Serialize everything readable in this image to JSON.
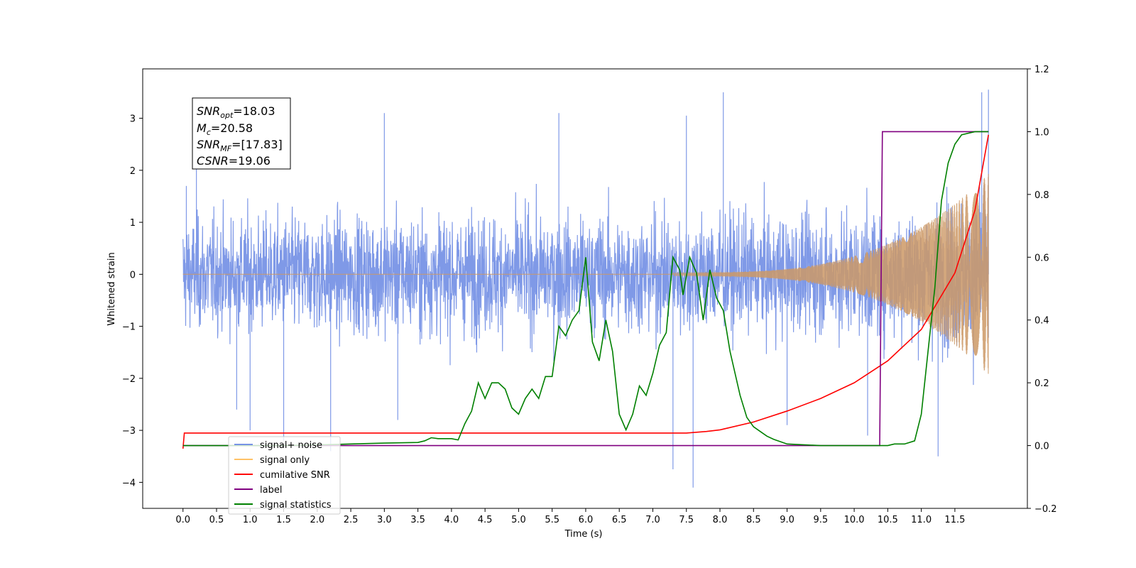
{
  "chart_data": {
    "type": "line",
    "xlabel": "Time (s)",
    "ylabel": "Whitened strain",
    "xlim": [
      -0.6,
      12.58
    ],
    "ylim": [
      -4.5,
      3.95
    ],
    "y2lim": [
      -0.2,
      1.2
    ],
    "x_ticks": [
      "0.0",
      "0.5",
      "1.0",
      "1.5",
      "2.0",
      "2.5",
      "3.0",
      "3.5",
      "4.0",
      "4.5",
      "5.0",
      "5.5",
      "6.0",
      "6.5",
      "7.0",
      "7.5",
      "8.0",
      "8.5",
      "9.0",
      "9.5",
      "10.0",
      "10.5",
      "11.0",
      "11.5"
    ],
    "x_tick_values": [
      0,
      0.5,
      1,
      1.5,
      2,
      2.5,
      3,
      3.5,
      4,
      4.5,
      5,
      5.5,
      6,
      6.5,
      7,
      7.5,
      8,
      8.5,
      9,
      9.5,
      10,
      10.5,
      11,
      11.5
    ],
    "y_ticks": [
      "3",
      "2",
      "1",
      "0",
      "−1",
      "−2",
      "−3",
      "−4"
    ],
    "y_tick_values": [
      3,
      2,
      1,
      0,
      -1,
      -2,
      -3,
      -4
    ],
    "y2_ticks": [
      "1.2",
      "1.0",
      "0.8",
      "0.6",
      "0.4",
      "0.2",
      "0.0",
      "−0.2"
    ],
    "y2_tick_values": [
      1.2,
      1.0,
      0.8,
      0.6,
      0.4,
      0.2,
      0.0,
      -0.2
    ],
    "annotation": {
      "lines": [
        {
          "main": "SNR",
          "sub": "opt",
          "value": "=18.03"
        },
        {
          "main": "M",
          "sub": "c",
          "value": "=20.58"
        },
        {
          "main": "SNR",
          "sub": "MF",
          "value": "=[17.83]"
        },
        {
          "main": "CSNR",
          "sub": "",
          "value": "=19.06"
        }
      ]
    },
    "legend": {
      "placement": "lower-left",
      "entries": [
        {
          "label": "signal+ noise",
          "color": "#7893e6"
        },
        {
          "label": "signal only",
          "color": "#ffc266"
        },
        {
          "label": "cumilative SNR",
          "color": "#ff0000"
        },
        {
          "label": "label",
          "color": "#800080"
        },
        {
          "label": "signal statistics",
          "color": "#008000"
        }
      ]
    },
    "series": [
      {
        "name": "signal+ noise",
        "color": "#7893e6",
        "axis": "left",
        "t_range": [
          0,
          12.0
        ],
        "envelope_upper": [
          [
            0,
            1.2
          ],
          [
            1,
            1.25
          ],
          [
            3,
            1.3
          ],
          [
            6,
            1.3
          ],
          [
            9,
            1.3
          ],
          [
            10.5,
            1.4
          ],
          [
            11.0,
            1.5
          ],
          [
            11.5,
            1.6
          ],
          [
            12.0,
            1.9
          ]
        ],
        "envelope_lower": [
          [
            0,
            -1.2
          ],
          [
            1,
            -1.25
          ],
          [
            3,
            -1.3
          ],
          [
            6,
            -1.3
          ],
          [
            9,
            -1.3
          ],
          [
            10.5,
            -1.4
          ],
          [
            11.0,
            -1.5
          ],
          [
            11.5,
            -1.6
          ],
          [
            12.0,
            -1.9
          ]
        ],
        "extremes": [
          [
            0.05,
            1.7
          ],
          [
            0.2,
            2.4
          ],
          [
            0.8,
            -2.6
          ],
          [
            1.0,
            -3.0
          ],
          [
            1.5,
            -3.2
          ],
          [
            2.2,
            -3.4
          ],
          [
            3.0,
            3.1
          ],
          [
            3.2,
            -2.8
          ],
          [
            5.6,
            3.1
          ],
          [
            7.3,
            -3.75
          ],
          [
            7.5,
            3.05
          ],
          [
            7.6,
            -4.1
          ],
          [
            8.05,
            3.5
          ],
          [
            9.0,
            -2.9
          ],
          [
            10.2,
            -3.1
          ],
          [
            11.25,
            -3.5
          ],
          [
            11.9,
            3.5
          ],
          [
            12.0,
            3.55
          ]
        ]
      },
      {
        "name": "signal only",
        "color": "#cc9966",
        "axis": "left",
        "chirp_start": 7.3,
        "t_end": 12.0,
        "amplitude_end": 1.9
      },
      {
        "name": "cumilative SNR",
        "color": "#ff0000",
        "axis": "right",
        "points": [
          [
            0.0,
            -0.01
          ],
          [
            0.02,
            0.04
          ],
          [
            7.5,
            0.04
          ],
          [
            7.8,
            0.045
          ],
          [
            8.0,
            0.05
          ],
          [
            8.5,
            0.075
          ],
          [
            9.0,
            0.11
          ],
          [
            9.5,
            0.15
          ],
          [
            10.0,
            0.2
          ],
          [
            10.5,
            0.27
          ],
          [
            11.0,
            0.37
          ],
          [
            11.5,
            0.55
          ],
          [
            11.8,
            0.75
          ],
          [
            12.0,
            0.99
          ]
        ]
      },
      {
        "name": "label",
        "color": "#800080",
        "axis": "right",
        "points": [
          [
            0.0,
            0.0
          ],
          [
            10.38,
            0.0
          ],
          [
            10.42,
            1.0
          ],
          [
            12.0,
            1.0
          ]
        ]
      },
      {
        "name": "signal statistics",
        "color": "#008000",
        "axis": "right",
        "points": [
          [
            0.0,
            0.0
          ],
          [
            0.5,
            0.0
          ],
          [
            1.5,
            0.0
          ],
          [
            2.0,
            0.002
          ],
          [
            2.5,
            0.005
          ],
          [
            3.0,
            0.008
          ],
          [
            3.5,
            0.01
          ],
          [
            3.6,
            0.015
          ],
          [
            3.7,
            0.025
          ],
          [
            3.8,
            0.022
          ],
          [
            4.0,
            0.022
          ],
          [
            4.1,
            0.018
          ],
          [
            4.2,
            0.07
          ],
          [
            4.3,
            0.11
          ],
          [
            4.4,
            0.2
          ],
          [
            4.5,
            0.15
          ],
          [
            4.6,
            0.2
          ],
          [
            4.7,
            0.2
          ],
          [
            4.8,
            0.18
          ],
          [
            4.9,
            0.12
          ],
          [
            5.0,
            0.1
          ],
          [
            5.1,
            0.15
          ],
          [
            5.2,
            0.18
          ],
          [
            5.3,
            0.15
          ],
          [
            5.4,
            0.22
          ],
          [
            5.5,
            0.22
          ],
          [
            5.6,
            0.38
          ],
          [
            5.7,
            0.35
          ],
          [
            5.8,
            0.4
          ],
          [
            5.9,
            0.43
          ],
          [
            6.0,
            0.6
          ],
          [
            6.1,
            0.33
          ],
          [
            6.2,
            0.27
          ],
          [
            6.3,
            0.4
          ],
          [
            6.4,
            0.3
          ],
          [
            6.5,
            0.1
          ],
          [
            6.6,
            0.05
          ],
          [
            6.7,
            0.1
          ],
          [
            6.8,
            0.19
          ],
          [
            6.9,
            0.16
          ],
          [
            7.0,
            0.23
          ],
          [
            7.1,
            0.32
          ],
          [
            7.2,
            0.36
          ],
          [
            7.3,
            0.6
          ],
          [
            7.4,
            0.56
          ],
          [
            7.45,
            0.48
          ],
          [
            7.55,
            0.6
          ],
          [
            7.65,
            0.55
          ],
          [
            7.75,
            0.4
          ],
          [
            7.85,
            0.56
          ],
          [
            7.95,
            0.47
          ],
          [
            8.05,
            0.43
          ],
          [
            8.15,
            0.3
          ],
          [
            8.3,
            0.16
          ],
          [
            8.4,
            0.09
          ],
          [
            8.5,
            0.06
          ],
          [
            8.6,
            0.045
          ],
          [
            8.7,
            0.03
          ],
          [
            8.8,
            0.02
          ],
          [
            9.0,
            0.005
          ],
          [
            9.5,
            0.0
          ],
          [
            10.0,
            0.0
          ],
          [
            10.5,
            0.0
          ],
          [
            10.6,
            0.005
          ],
          [
            10.75,
            0.005
          ],
          [
            10.9,
            0.015
          ],
          [
            11.0,
            0.1
          ],
          [
            11.1,
            0.3
          ],
          [
            11.2,
            0.5
          ],
          [
            11.3,
            0.78
          ],
          [
            11.4,
            0.9
          ],
          [
            11.5,
            0.96
          ],
          [
            11.6,
            0.99
          ],
          [
            11.8,
            1.0
          ],
          [
            12.0,
            1.0
          ]
        ]
      }
    ]
  }
}
